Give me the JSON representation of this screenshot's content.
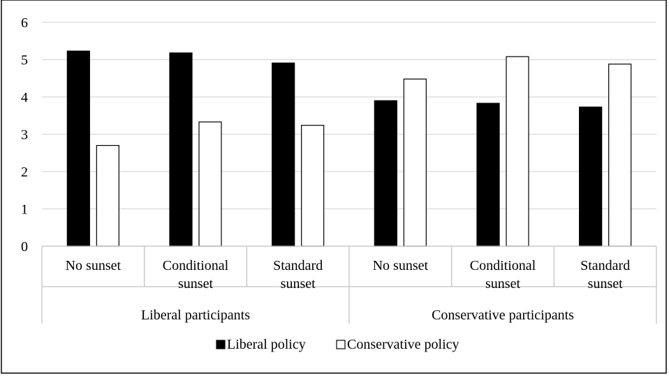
{
  "chart_data": {
    "type": "bar",
    "title": "",
    "xlabel": "",
    "ylabel": "",
    "ylim": [
      0,
      6
    ],
    "yticks": [
      "0",
      "1",
      "2",
      "3",
      "4",
      "5",
      "6"
    ],
    "grid": true,
    "legend_position": "bottom",
    "groups": [
      {
        "label": "Liberal participants",
        "categories": [
          [
            "No sunset"
          ],
          [
            "Conditional",
            "sunset"
          ],
          [
            "Standard",
            "sunset"
          ]
        ]
      },
      {
        "label": "Conservative participants",
        "categories": [
          [
            "No sunset"
          ],
          [
            "Conditional",
            "sunset"
          ],
          [
            "Standard",
            "sunset"
          ]
        ]
      }
    ],
    "series": [
      {
        "name": "Liberal policy",
        "color": "#000000",
        "values": [
          5.23,
          5.18,
          4.91,
          3.9,
          3.83,
          3.73
        ]
      },
      {
        "name": "Conservative policy",
        "color": "#ffffff",
        "values": [
          2.7,
          3.33,
          3.24,
          4.48,
          5.08,
          4.88
        ]
      }
    ]
  }
}
